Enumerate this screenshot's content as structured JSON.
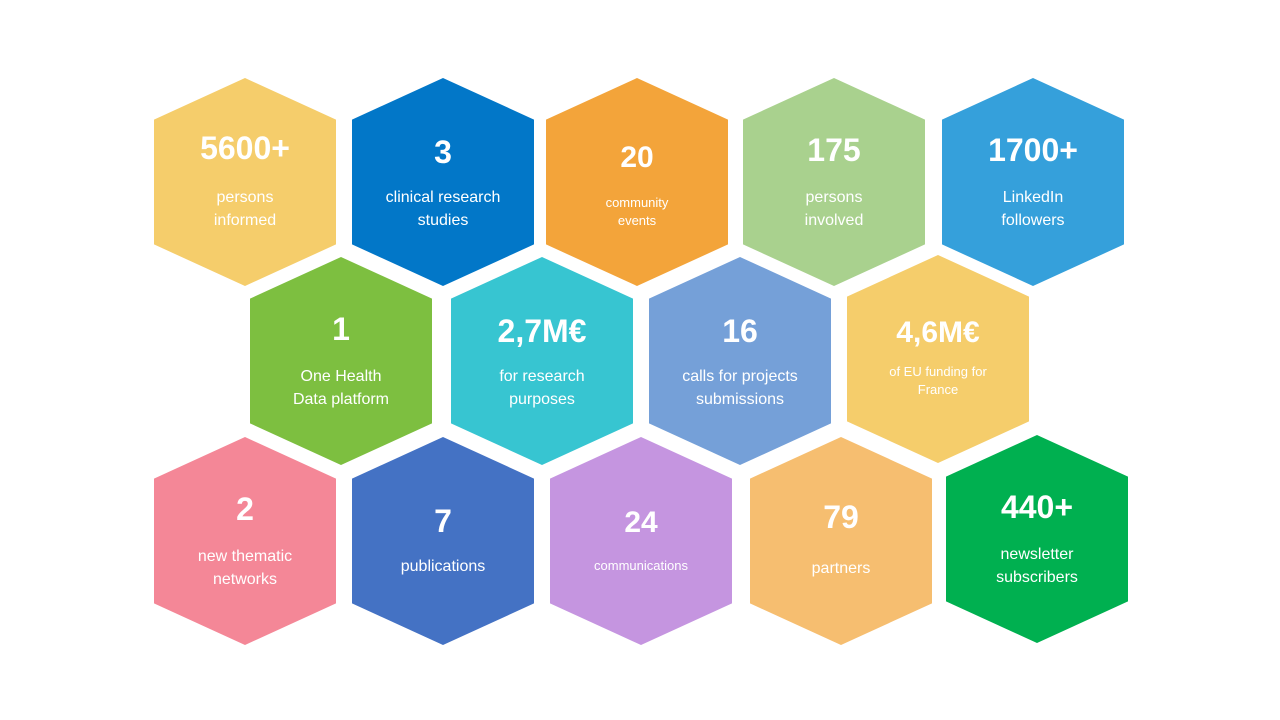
{
  "stats": [
    {
      "id": "persons-informed",
      "value": "5600+",
      "label": [
        "persons",
        "informed"
      ],
      "color": "#F5CD6B"
    },
    {
      "id": "clinical-research-studies",
      "value": "3",
      "label": [
        "clinical research",
        "studies"
      ],
      "color": "#0277C8"
    },
    {
      "id": "community-events",
      "value": "20",
      "label": [
        "community",
        "events"
      ],
      "color": "#F3A43A"
    },
    {
      "id": "persons-involved",
      "value": "175",
      "label": [
        "persons",
        "involved"
      ],
      "color": "#A9D18E"
    },
    {
      "id": "linkedin-followers",
      "value": "1700+",
      "label": [
        "LinkedIn",
        "followers"
      ],
      "color": "#35A0DB"
    },
    {
      "id": "one-health-data-platform",
      "value": "1",
      "label": [
        "One Health",
        "Data platform"
      ],
      "color": "#7DBF40"
    },
    {
      "id": "research-funding",
      "value": "2,7M€",
      "label": [
        "for research",
        "purposes"
      ],
      "color": "#37C5D1"
    },
    {
      "id": "calls-for-projects",
      "value": "16",
      "label": [
        "calls for projects",
        "submissions"
      ],
      "color": "#75A0D8"
    },
    {
      "id": "eu-funding-france",
      "value": "4,6M€",
      "label": [
        "of EU funding for",
        "France"
      ],
      "color": "#F5CD6B"
    },
    {
      "id": "thematic-networks",
      "value": "2",
      "label": [
        "new thematic",
        "networks"
      ],
      "color": "#F48797"
    },
    {
      "id": "publications",
      "value": "7",
      "label": [
        "publications"
      ],
      "color": "#4472C4"
    },
    {
      "id": "communications",
      "value": "24",
      "label": [
        "communications"
      ],
      "color": "#C595E0"
    },
    {
      "id": "partners",
      "value": "79",
      "label": [
        "partners"
      ],
      "color": "#F6BE70"
    },
    {
      "id": "newsletter-subscribers",
      "value": "440+",
      "label": [
        "newsletter",
        "subscribers"
      ],
      "color": "#00B050"
    }
  ]
}
